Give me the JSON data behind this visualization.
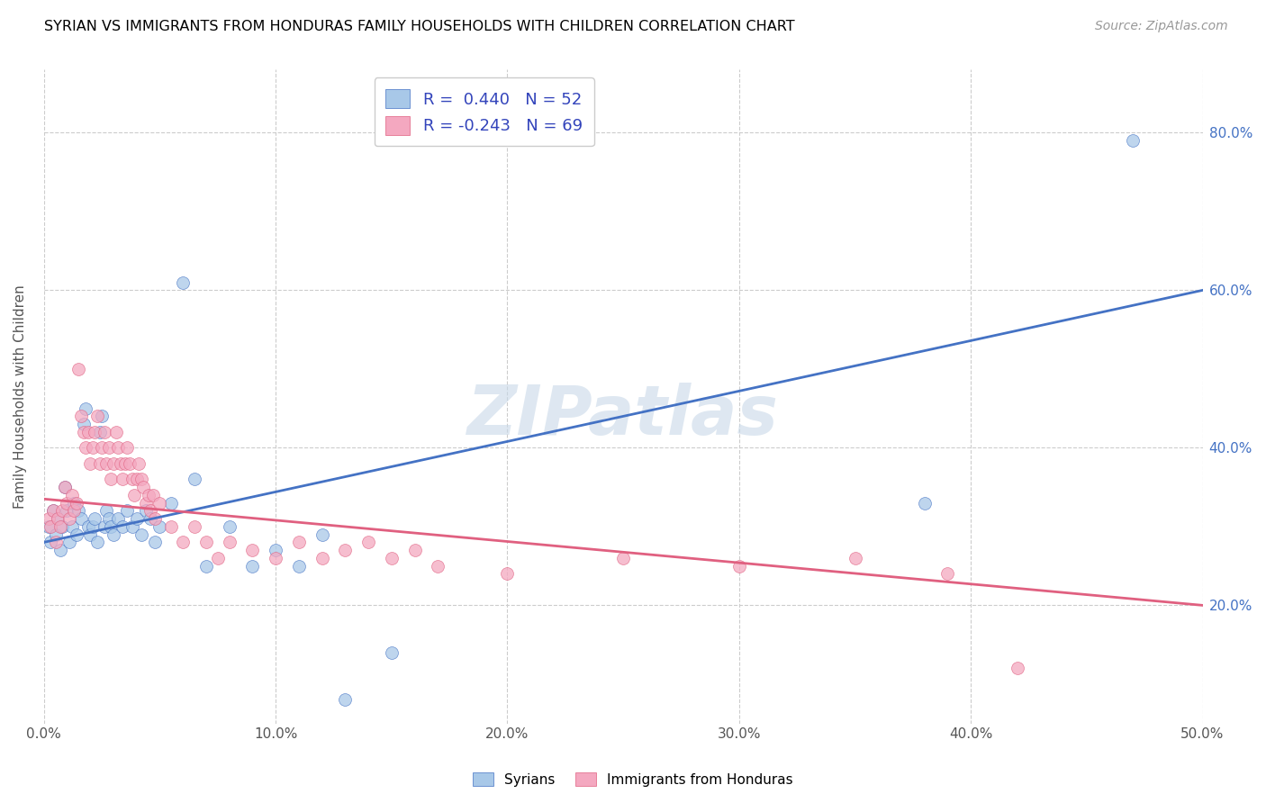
{
  "title": "SYRIAN VS IMMIGRANTS FROM HONDURAS FAMILY HOUSEHOLDS WITH CHILDREN CORRELATION CHART",
  "source": "Source: ZipAtlas.com",
  "ylabel": "Family Households with Children",
  "xlim": [
    0.0,
    0.5
  ],
  "ylim": [
    0.05,
    0.88
  ],
  "x_ticks": [
    0.0,
    0.1,
    0.2,
    0.3,
    0.4,
    0.5
  ],
  "y_ticks": [
    0.2,
    0.4,
    0.6,
    0.8
  ],
  "y_tick_labels": [
    "20.0%",
    "40.0%",
    "60.0%",
    "80.0%"
  ],
  "x_tick_labels": [
    "0.0%",
    "10.0%",
    "20.0%",
    "30.0%",
    "40.0%",
    "50.0%"
  ],
  "syrians_R": 0.44,
  "syrians_N": 52,
  "honduras_R": -0.243,
  "honduras_N": 69,
  "watermark": "ZIPatlas",
  "blue_color": "#a8c8e8",
  "pink_color": "#f4a8c0",
  "blue_line_color": "#4472c4",
  "pink_line_color": "#e06080",
  "syrians_x": [
    0.002,
    0.003,
    0.004,
    0.005,
    0.006,
    0.007,
    0.008,
    0.009,
    0.01,
    0.011,
    0.012,
    0.013,
    0.014,
    0.015,
    0.016,
    0.017,
    0.018,
    0.019,
    0.02,
    0.021,
    0.022,
    0.023,
    0.024,
    0.025,
    0.026,
    0.027,
    0.028,
    0.029,
    0.03,
    0.032,
    0.034,
    0.036,
    0.038,
    0.04,
    0.042,
    0.044,
    0.046,
    0.048,
    0.05,
    0.055,
    0.06,
    0.065,
    0.07,
    0.08,
    0.09,
    0.1,
    0.11,
    0.12,
    0.13,
    0.15,
    0.38,
    0.47
  ],
  "syrians_y": [
    0.3,
    0.28,
    0.32,
    0.29,
    0.31,
    0.27,
    0.3,
    0.35,
    0.32,
    0.28,
    0.3,
    0.33,
    0.29,
    0.32,
    0.31,
    0.43,
    0.45,
    0.3,
    0.29,
    0.3,
    0.31,
    0.28,
    0.42,
    0.44,
    0.3,
    0.32,
    0.31,
    0.3,
    0.29,
    0.31,
    0.3,
    0.32,
    0.3,
    0.31,
    0.29,
    0.32,
    0.31,
    0.28,
    0.3,
    0.33,
    0.61,
    0.36,
    0.25,
    0.3,
    0.25,
    0.27,
    0.25,
    0.29,
    0.08,
    0.14,
    0.33,
    0.79
  ],
  "honduras_x": [
    0.002,
    0.003,
    0.004,
    0.005,
    0.006,
    0.007,
    0.008,
    0.009,
    0.01,
    0.011,
    0.012,
    0.013,
    0.014,
    0.015,
    0.016,
    0.017,
    0.018,
    0.019,
    0.02,
    0.021,
    0.022,
    0.023,
    0.024,
    0.025,
    0.026,
    0.027,
    0.028,
    0.029,
    0.03,
    0.031,
    0.032,
    0.033,
    0.034,
    0.035,
    0.036,
    0.037,
    0.038,
    0.039,
    0.04,
    0.041,
    0.042,
    0.043,
    0.044,
    0.045,
    0.046,
    0.047,
    0.048,
    0.05,
    0.055,
    0.06,
    0.065,
    0.07,
    0.075,
    0.08,
    0.09,
    0.1,
    0.11,
    0.12,
    0.13,
    0.14,
    0.15,
    0.16,
    0.17,
    0.2,
    0.25,
    0.3,
    0.35,
    0.39,
    0.42
  ],
  "honduras_y": [
    0.31,
    0.3,
    0.32,
    0.28,
    0.31,
    0.3,
    0.32,
    0.35,
    0.33,
    0.31,
    0.34,
    0.32,
    0.33,
    0.5,
    0.44,
    0.42,
    0.4,
    0.42,
    0.38,
    0.4,
    0.42,
    0.44,
    0.38,
    0.4,
    0.42,
    0.38,
    0.4,
    0.36,
    0.38,
    0.42,
    0.4,
    0.38,
    0.36,
    0.38,
    0.4,
    0.38,
    0.36,
    0.34,
    0.36,
    0.38,
    0.36,
    0.35,
    0.33,
    0.34,
    0.32,
    0.34,
    0.31,
    0.33,
    0.3,
    0.28,
    0.3,
    0.28,
    0.26,
    0.28,
    0.27,
    0.26,
    0.28,
    0.26,
    0.27,
    0.28,
    0.26,
    0.27,
    0.25,
    0.24,
    0.26,
    0.25,
    0.26,
    0.24,
    0.12
  ],
  "blue_line_y_at_0": 0.28,
  "blue_line_y_at_50": 0.6,
  "pink_line_y_at_0": 0.335,
  "pink_line_y_at_50": 0.2
}
